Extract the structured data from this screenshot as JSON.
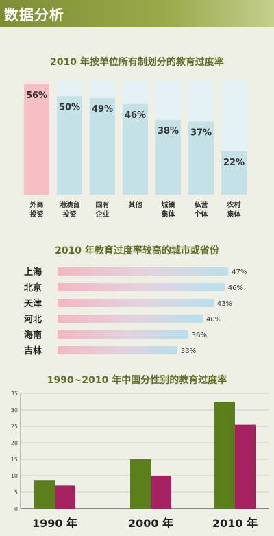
{
  "header": {
    "title": "数据分析"
  },
  "colors": {
    "accent": "#7d8e35",
    "bar_pink": "#f6bfc3",
    "bar_blue": "#c5e2e8",
    "series_green": "#5a7f1a",
    "series_magenta": "#a5215f"
  },
  "chart_data": [
    {
      "type": "bar",
      "title": "2010 年按单位所有制划分的教育过度率",
      "categories": [
        [
          "外商",
          "投资"
        ],
        [
          "港澳台",
          "投资"
        ],
        [
          "国有",
          "企业"
        ],
        [
          "其他"
        ],
        [
          "城镇",
          "集体"
        ],
        [
          "私营",
          "个体"
        ],
        [
          "农村",
          "集体"
        ]
      ],
      "values": [
        56,
        50,
        49,
        46,
        38,
        37,
        22
      ],
      "value_labels": [
        "56%",
        "50%",
        "49%",
        "46%",
        "38%",
        "37%",
        "22%"
      ],
      "ylim": [
        0,
        60
      ]
    },
    {
      "type": "bar",
      "orientation": "horizontal",
      "title": "2010 年教育过度率较高的城市或省份",
      "categories": [
        "上海",
        "北京",
        "天津",
        "河北",
        "海南",
        "吉林"
      ],
      "values": [
        47,
        46,
        43,
        40,
        36,
        33
      ],
      "value_labels": [
        "47%",
        "46%",
        "43%",
        "40%",
        "36%",
        "33%"
      ]
    },
    {
      "type": "bar",
      "title": "1990~2010 年中国分性别的教育过度率",
      "categories": [
        "1990 年",
        "2000 年",
        "2010 年"
      ],
      "series": [
        {
          "values": [
            8.5,
            15,
            32.5
          ]
        },
        {
          "values": [
            7,
            10,
            25.5
          ]
        }
      ],
      "yticks": [
        "0",
        "5",
        "10",
        "15",
        "20",
        "25",
        "30",
        "35"
      ],
      "ylim": [
        0,
        35
      ],
      "grid": true
    }
  ]
}
